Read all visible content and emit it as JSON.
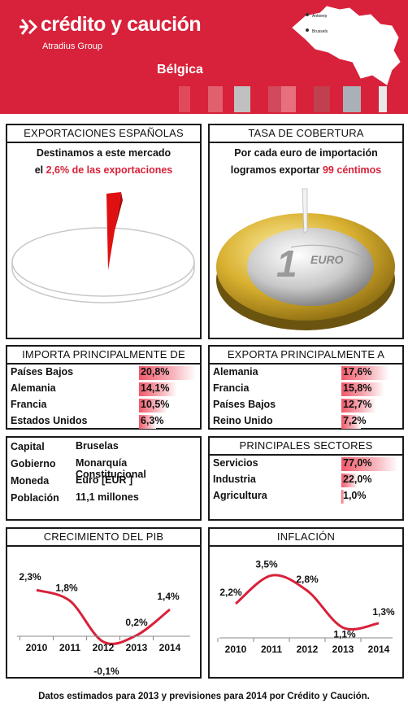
{
  "header": {
    "brand": "crédito y caución",
    "group": "Atradius Group",
    "country": "Bélgica",
    "map_cities": [
      "Antwerp",
      "Brussels"
    ],
    "stripe_colors": [
      "#e04a5c",
      "#d8213a",
      "#e06070",
      "#d8213a",
      "#c0c0c0",
      "#d8213a",
      "#d04a5c",
      "#e8707e",
      "#d8213a",
      "#c04050",
      "#d8213a",
      "#aab0b8",
      "#d8213a",
      "#e8e8e8"
    ],
    "accent": "#d8213a"
  },
  "exportaciones": {
    "title": "EXPORTACIONES ESPAÑOLAS",
    "line1": "Destinamos a este mercado",
    "line2_prefix": "el ",
    "line2_value": "2,6% de las exportaciones",
    "share_percent": 2.6
  },
  "cobertura": {
    "title": "TASA DE COBERTURA",
    "line1": "Por cada euro de importación",
    "line2_prefix": "logramos exportar ",
    "line2_value": "99 céntimos",
    "coverage_percent": 99
  },
  "importa": {
    "title": "IMPORTA PRINCIPALMENTE DE",
    "rows": [
      {
        "country": "Países Bajos",
        "value": "20,8%",
        "pct": 20.8
      },
      {
        "country": "Alemania",
        "value": "14,1%",
        "pct": 14.1
      },
      {
        "country": "Francia",
        "value": "10,5%",
        "pct": 10.5
      },
      {
        "country": "Estados Unidos",
        "value": "6,3%",
        "pct": 6.3
      }
    ]
  },
  "exporta": {
    "title": "EXPORTA PRINCIPALMENTE A",
    "rows": [
      {
        "country": "Alemania",
        "value": "17,6%",
        "pct": 17.6
      },
      {
        "country": "Francia",
        "value": "15,8%",
        "pct": 15.8
      },
      {
        "country": "Países Bajos",
        "value": "12,7%",
        "pct": 12.7
      },
      {
        "country": "Reino Unido",
        "value": "7,2%",
        "pct": 7.2
      }
    ]
  },
  "info": {
    "rows": [
      {
        "label": "Capital",
        "value": "Bruselas"
      },
      {
        "label": "Gobierno",
        "value": "Monarquía Constitucional"
      },
      {
        "label": "Moneda",
        "value": "Euro [EUR ]"
      },
      {
        "label": "Población",
        "value": "11,1 millones"
      }
    ]
  },
  "sectores": {
    "title": "PRINCIPALES SECTORES",
    "rows": [
      {
        "sector": "Servicios",
        "value": "77,0%",
        "pct": 77.0
      },
      {
        "sector": "Industria",
        "value": "22,0%",
        "pct": 22.0
      },
      {
        "sector": "Agricultura",
        "value": "1,0%",
        "pct": 1.0
      }
    ]
  },
  "chart_data": [
    {
      "type": "line",
      "title": "CRECIMIENTO DEL PIB",
      "categories": [
        "2010",
        "2011",
        "2012",
        "2013",
        "2014"
      ],
      "values": [
        2.3,
        1.8,
        -0.1,
        0.2,
        1.4
      ],
      "value_labels": [
        "2,3%",
        "1,8%",
        "-0,1%",
        "0,2%",
        "1,4%"
      ],
      "ylim": [
        -0.6,
        2.8
      ],
      "grid": false,
      "line_color": "#d8213a"
    },
    {
      "type": "line",
      "title": "INFLACIÓN",
      "categories": [
        "2010",
        "2011",
        "2012",
        "2013",
        "2014"
      ],
      "values": [
        2.2,
        3.5,
        2.8,
        1.1,
        1.3
      ],
      "value_labels": [
        "2,2%",
        "3,5%",
        "2,8%",
        "1,1%",
        "1,3%"
      ],
      "ylim": [
        0.4,
        4.0
      ],
      "grid": false,
      "line_color": "#d8213a"
    }
  ],
  "footer": "Datos estimados para 2013 y previsiones para 2014 por Crédito y Caución."
}
